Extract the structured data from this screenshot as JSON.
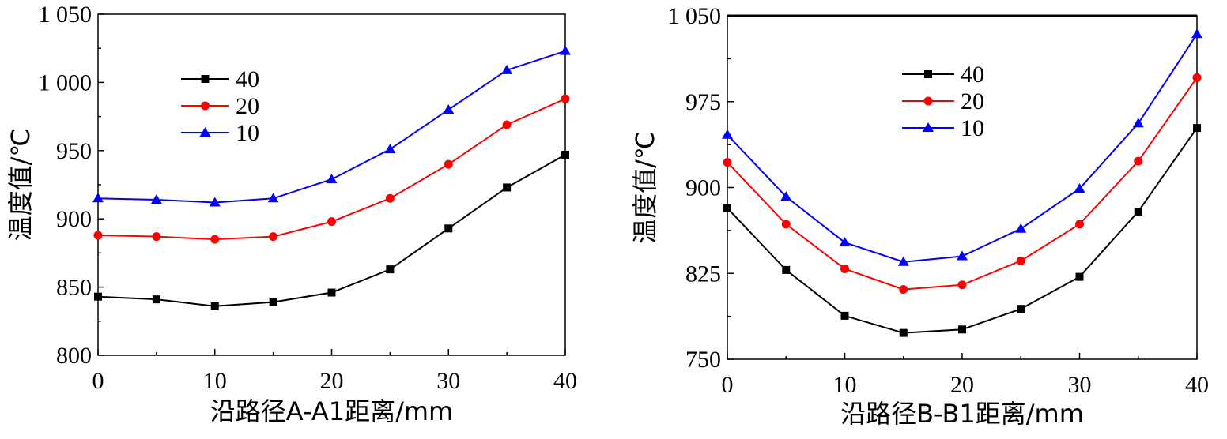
{
  "chart_data": [
    {
      "type": "line",
      "xlabel": "沿路径A-A1距离/mm",
      "ylabel": "温度值/℃",
      "xlim": [
        0,
        40
      ],
      "ylim": [
        800,
        1050
      ],
      "xticks": [
        0,
        10,
        20,
        30,
        40
      ],
      "yticks": [
        800,
        850,
        900,
        950,
        1000,
        1050
      ],
      "xtick_labels": [
        "0",
        "10",
        "20",
        "30",
        "40"
      ],
      "ytick_labels": [
        "800",
        "850",
        "900",
        "950",
        "1 000",
        "1 050"
      ],
      "x": [
        0,
        5,
        10,
        15,
        20,
        25,
        30,
        35,
        40
      ],
      "legend_position": "upper-left-inside",
      "grid": false,
      "series": [
        {
          "name": "40",
          "color": "#000000",
          "marker": "square",
          "values": [
            843,
            841,
            836,
            839,
            846,
            863,
            893,
            923,
            947
          ]
        },
        {
          "name": "20",
          "color": "#ff0000",
          "marker": "circle",
          "values": [
            888,
            887,
            885,
            887,
            898,
            915,
            940,
            969,
            988
          ]
        },
        {
          "name": "10",
          "color": "#0000ff",
          "marker": "triangle",
          "values": [
            915,
            914,
            912,
            915,
            929,
            951,
            980,
            1009,
            1023
          ]
        }
      ]
    },
    {
      "type": "line",
      "xlabel": "沿路径B-B1距离/mm",
      "ylabel": "温度值/℃",
      "xlim": [
        0,
        40
      ],
      "ylim": [
        750,
        1050
      ],
      "xticks": [
        0,
        10,
        20,
        30,
        40
      ],
      "yticks": [
        750,
        825,
        900,
        975,
        1050
      ],
      "xtick_labels": [
        "0",
        "10",
        "20",
        "30",
        "40"
      ],
      "ytick_labels": [
        "750",
        "825",
        "900",
        "975",
        "1 050"
      ],
      "x": [
        0,
        5,
        10,
        15,
        20,
        25,
        30,
        35,
        40
      ],
      "legend_position": "upper-center-inside",
      "grid": false,
      "series": [
        {
          "name": "40",
          "color": "#000000",
          "marker": "square",
          "values": [
            882,
            828,
            788,
            773,
            776,
            794,
            822,
            879,
            952
          ]
        },
        {
          "name": "20",
          "color": "#ff0000",
          "marker": "circle",
          "values": [
            922,
            868,
            829,
            811,
            815,
            836,
            868,
            923,
            996
          ]
        },
        {
          "name": "10",
          "color": "#0000ff",
          "marker": "triangle",
          "values": [
            946,
            892,
            852,
            835,
            840,
            864,
            899,
            956,
            1034
          ]
        }
      ]
    }
  ]
}
